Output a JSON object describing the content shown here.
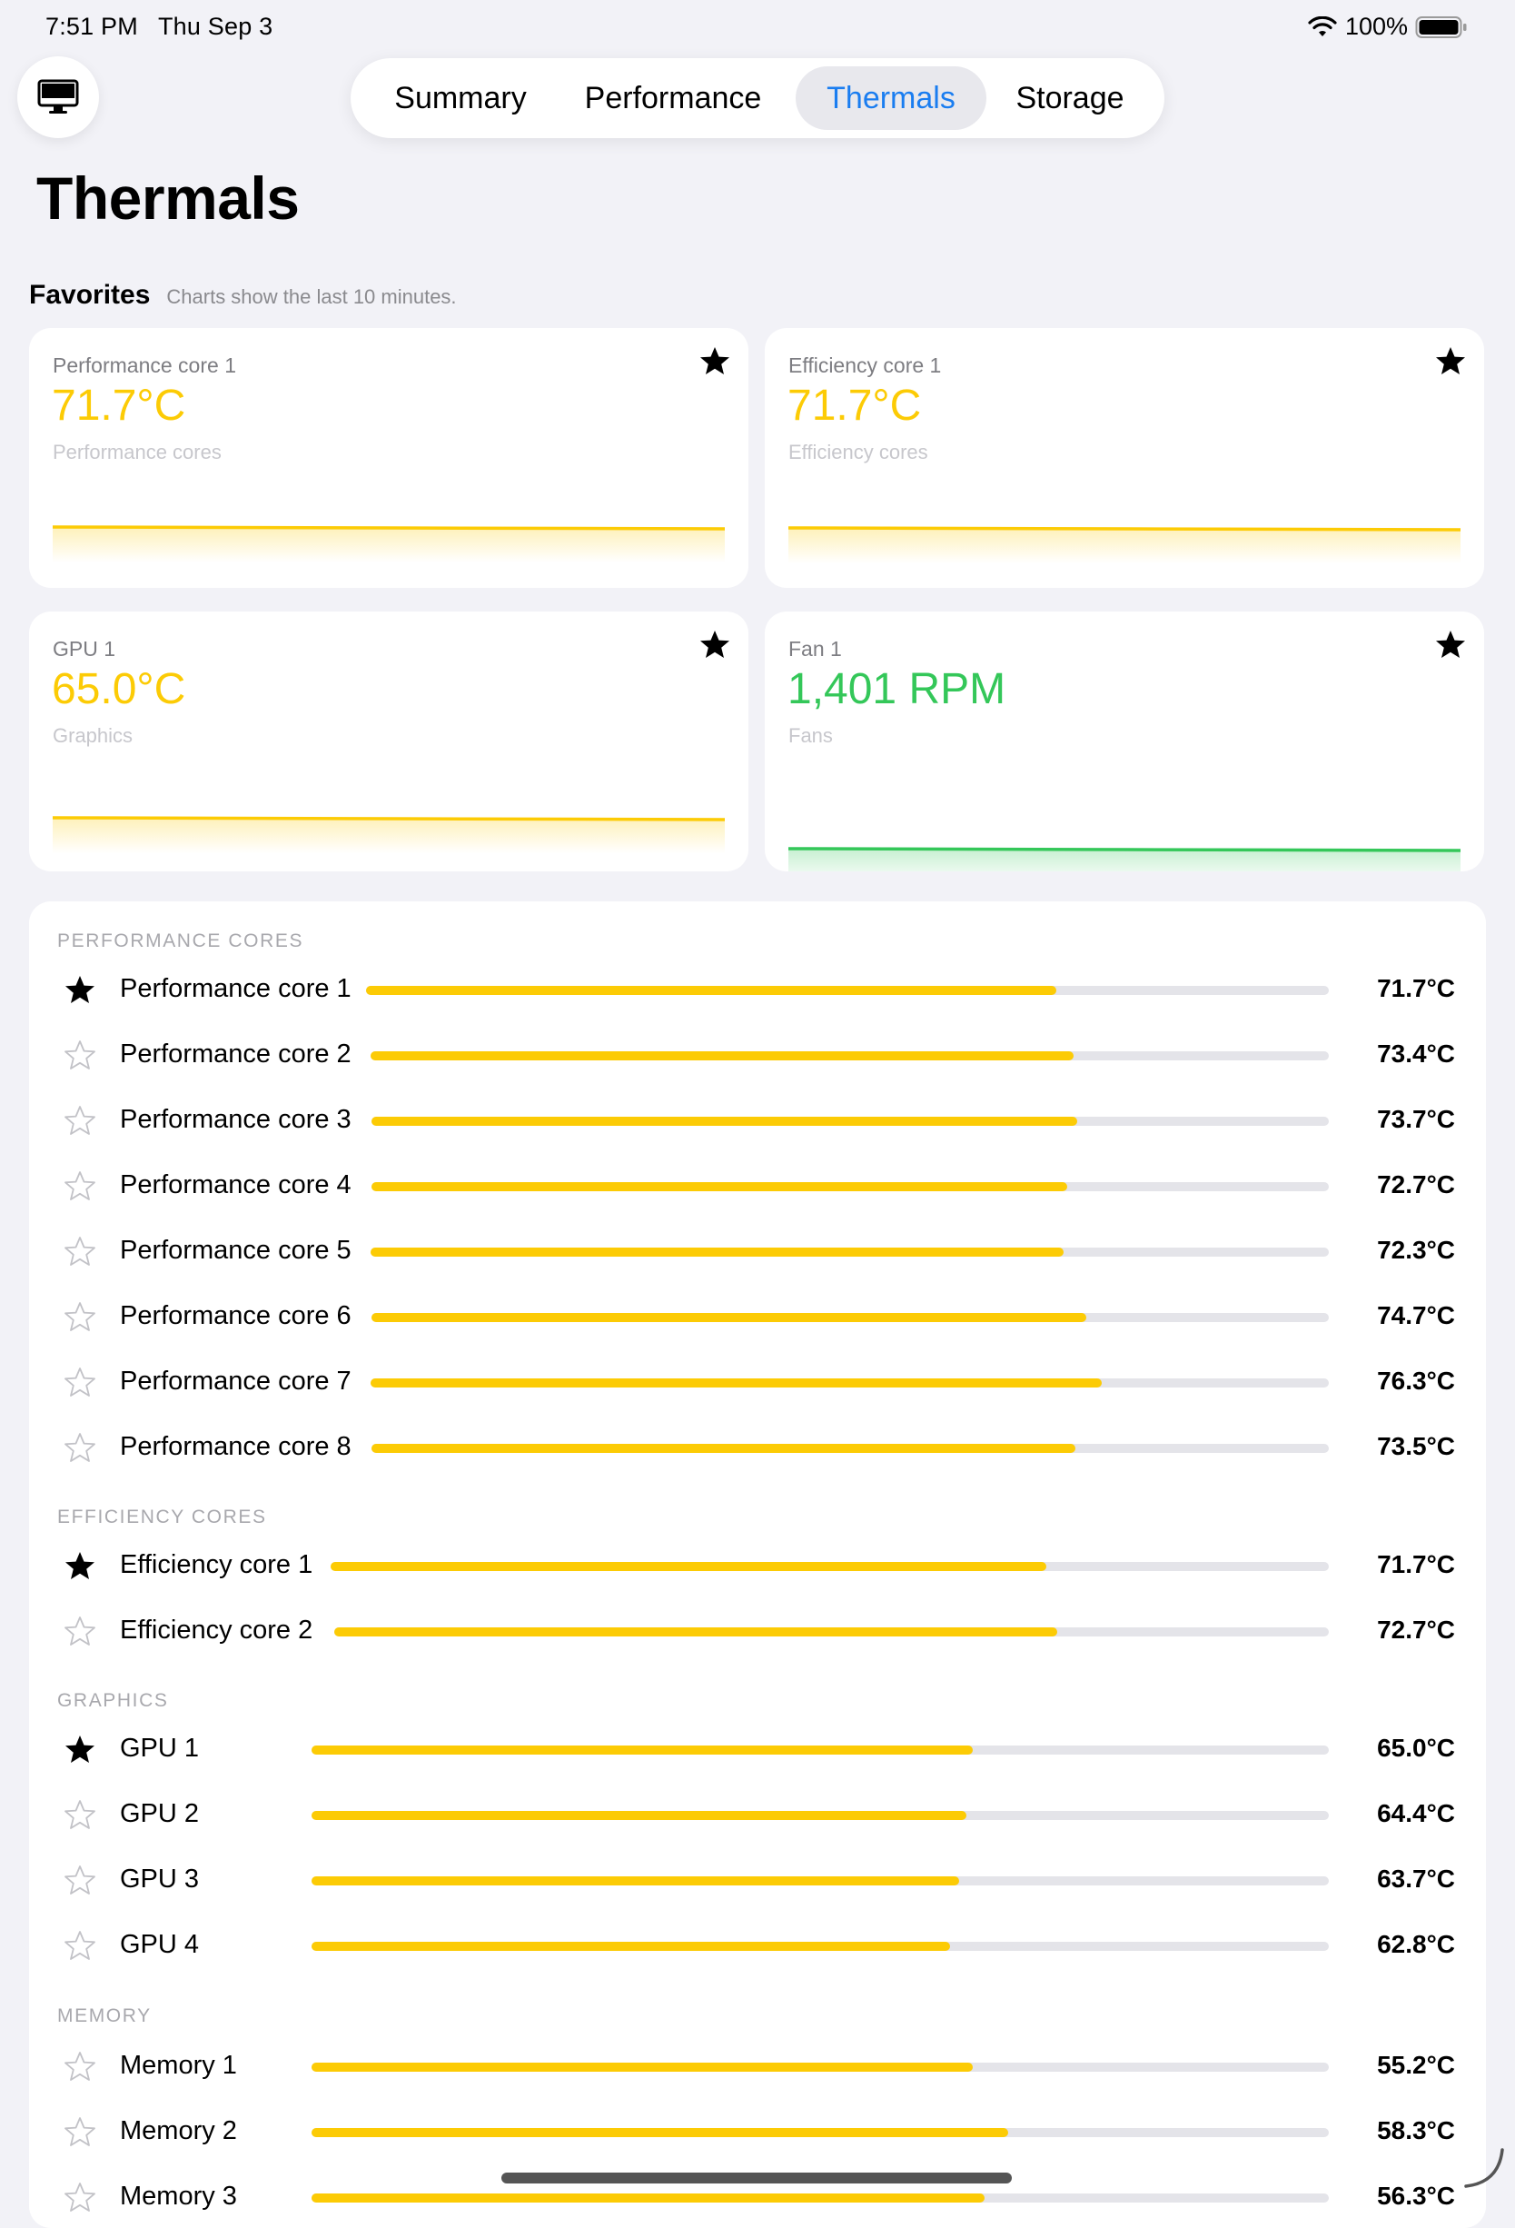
{
  "status": {
    "time": "7:51 PM",
    "date": "Thu Sep 3",
    "battery": "100%"
  },
  "tabs": [
    {
      "label": "Summary",
      "active": false
    },
    {
      "label": "Performance",
      "active": false
    },
    {
      "label": "Thermals",
      "active": true
    },
    {
      "label": "Storage",
      "active": false
    }
  ],
  "page_title": "Thermals",
  "favorites": {
    "heading": "Favorites",
    "subtitle": "Charts show the last 10 minutes.",
    "cards": [
      {
        "label": "Performance core 1",
        "value": "71.7°C",
        "category": "Performance cores",
        "color": "#fccb05",
        "starred": true
      },
      {
        "label": "Efficiency core 1",
        "value": "71.7°C",
        "category": "Efficiency cores",
        "color": "#fccb05",
        "starred": true
      },
      {
        "label": "GPU 1",
        "value": "65.0°C",
        "category": "Graphics",
        "color": "#fccb05",
        "starred": true
      },
      {
        "label": "Fan 1",
        "value": "1,401 RPM",
        "category": "Fans",
        "color": "#34c759",
        "starred": true
      }
    ]
  },
  "sections": [
    {
      "header": "PERFORMANCE CORES",
      "rows": [
        {
          "label": "Performance core 1",
          "value": "71.7°C",
          "fill": 0.717,
          "starred": true
        },
        {
          "label": "Performance core 2",
          "value": "73.4°C",
          "fill": 0.734,
          "starred": false
        },
        {
          "label": "Performance core 3",
          "value": "73.7°C",
          "fill": 0.737,
          "starred": false
        },
        {
          "label": "Performance core 4",
          "value": "72.7°C",
          "fill": 0.727,
          "starred": false
        },
        {
          "label": "Performance core 5",
          "value": "72.3°C",
          "fill": 0.723,
          "starred": false
        },
        {
          "label": "Performance core 6",
          "value": "74.7°C",
          "fill": 0.747,
          "starred": false
        },
        {
          "label": "Performance core 7",
          "value": "76.3°C",
          "fill": 0.763,
          "starred": false
        },
        {
          "label": "Performance core 8",
          "value": "73.5°C",
          "fill": 0.735,
          "starred": false
        }
      ]
    },
    {
      "header": "EFFICIENCY CORES",
      "rows": [
        {
          "label": "Efficiency core 1",
          "value": "71.7°C",
          "fill": 0.717,
          "starred": true
        },
        {
          "label": "Efficiency core 2",
          "value": "72.7°C",
          "fill": 0.727,
          "starred": false
        }
      ]
    },
    {
      "header": "GRAPHICS",
      "rows": [
        {
          "label": "GPU 1",
          "value": "65.0°C",
          "fill": 0.65,
          "starred": true
        },
        {
          "label": "GPU 2",
          "value": "64.4°C",
          "fill": 0.644,
          "starred": false
        },
        {
          "label": "GPU 3",
          "value": "63.7°C",
          "fill": 0.637,
          "starred": false
        },
        {
          "label": "GPU 4",
          "value": "62.8°C",
          "fill": 0.628,
          "starred": false
        }
      ]
    },
    {
      "header": "MEMORY",
      "rows": [
        {
          "label": "Memory 1",
          "value": "55.2°C",
          "fill": 0.65,
          "starred": false
        },
        {
          "label": "Memory 2",
          "value": "58.3°C",
          "fill": 0.685,
          "starred": false
        },
        {
          "label": "Memory 3",
          "value": "56.3°C",
          "fill": 0.662,
          "starred": false
        }
      ]
    }
  ]
}
